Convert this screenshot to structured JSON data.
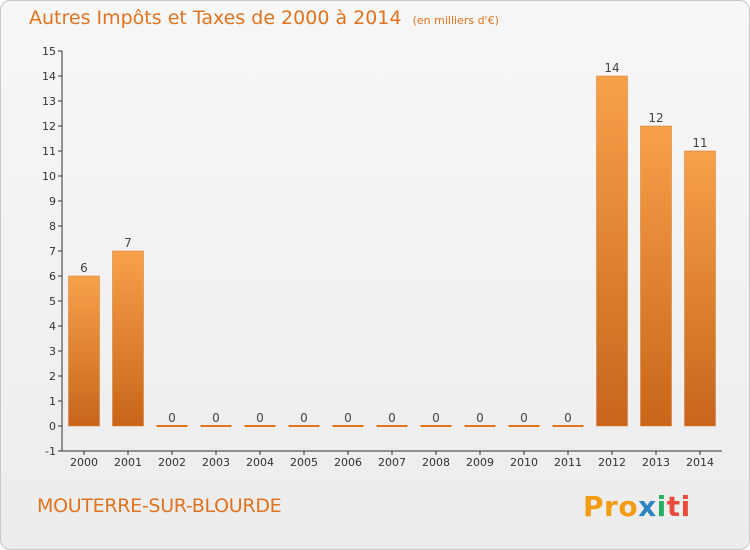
{
  "title": "Autres Impôts et Taxes de 2000 à 2014",
  "unit": "(en milliers d'€)",
  "commune": "MOUTERRE-SUR-BLOURDE",
  "logo": {
    "p1": "Pro",
    "p2": "x",
    "p3": "i",
    "p4": "ti"
  },
  "colors": {
    "accent": "#e0731e",
    "bar_top": "#f7a14a",
    "bar_bottom": "#c8651a"
  },
  "chart_data": {
    "type": "bar",
    "title": "Autres Impôts et Taxes de 2000 à 2014",
    "categories": [
      "2000",
      "2001",
      "2002",
      "2003",
      "2004",
      "2005",
      "2006",
      "2007",
      "2008",
      "2009",
      "2010",
      "2011",
      "2012",
      "2013",
      "2014"
    ],
    "values": [
      6,
      7,
      0,
      0,
      0,
      0,
      0,
      0,
      0,
      0,
      0,
      0,
      14,
      12,
      11
    ],
    "ylim": [
      -1,
      15
    ],
    "yticks": [
      -1,
      0,
      1,
      2,
      3,
      4,
      5,
      6,
      7,
      8,
      9,
      10,
      11,
      12,
      13,
      14,
      15
    ],
    "grid": false
  }
}
